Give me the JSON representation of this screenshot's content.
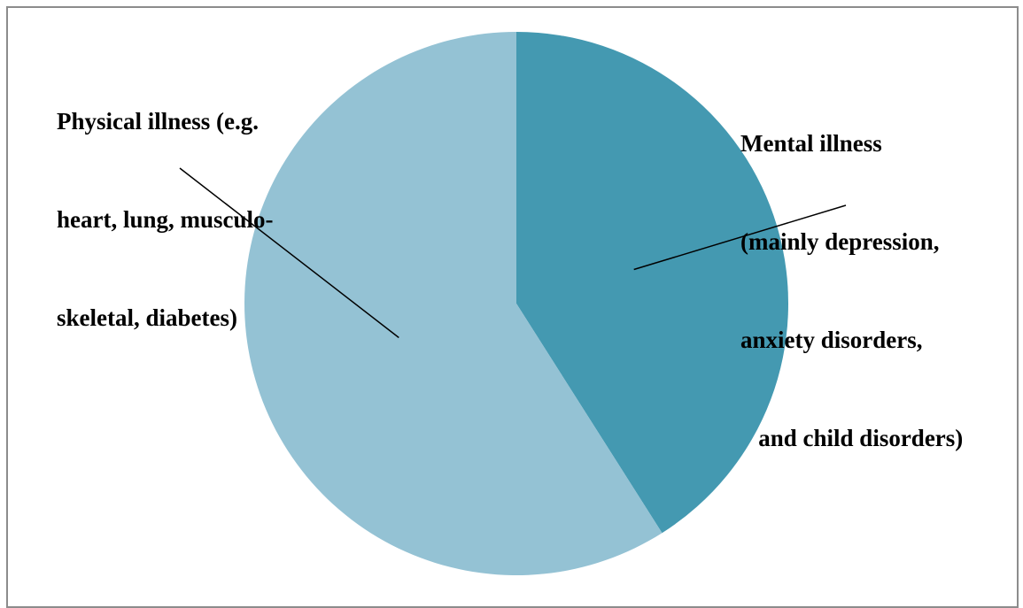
{
  "chart_data": {
    "type": "pie",
    "title": "",
    "start_angle_deg": 0,
    "direction": "clockwise",
    "slices": [
      {
        "label_lines": [
          "Mental illness",
          "(mainly depression,",
          "anxiety disorders,",
          "   and child disorders)"
        ],
        "value": 41,
        "color": "#4499b1"
      },
      {
        "label_lines": [
          "Physical illness (e.g.",
          "heart, lung, musculo-",
          "skeletal, diabetes)"
        ],
        "value": 59,
        "color": "#94c2d4"
      }
    ],
    "legend": "none",
    "label_style": "outside with leader lines"
  }
}
